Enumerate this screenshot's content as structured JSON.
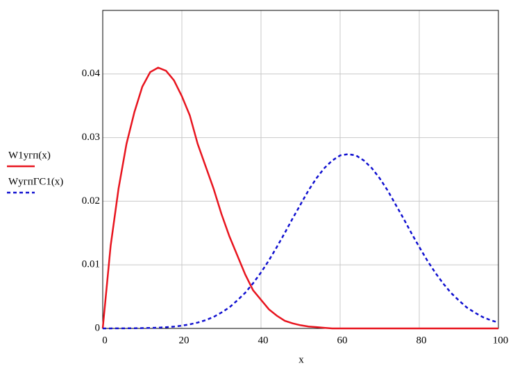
{
  "chart_data": {
    "type": "line",
    "x_label": "x",
    "x": [
      0,
      2,
      4,
      6,
      8,
      10,
      12,
      14,
      16,
      18,
      20,
      22,
      24,
      26,
      28,
      30,
      32,
      34,
      36,
      38,
      40,
      42,
      44,
      46,
      48,
      50,
      52,
      54,
      56,
      58,
      60,
      62,
      64,
      66,
      68,
      70,
      72,
      74,
      76,
      78,
      80,
      82,
      84,
      86,
      88,
      90,
      92,
      94,
      96,
      98,
      100
    ],
    "series": [
      {
        "name": "W1угп(x)",
        "color": "#e8141e",
        "dash": false,
        "values": [
          0,
          0.013,
          0.022,
          0.029,
          0.034,
          0.038,
          0.0403,
          0.041,
          0.0405,
          0.039,
          0.0365,
          0.0335,
          0.029,
          0.0255,
          0.022,
          0.018,
          0.0145,
          0.0115,
          0.0085,
          0.006,
          0.0045,
          0.003,
          0.002,
          0.0012,
          0.0008,
          0.0005,
          0.0003,
          0.0002,
          0.0001,
          0,
          0,
          0,
          0,
          0,
          0,
          0,
          0,
          0,
          0,
          0,
          0,
          0,
          0,
          0,
          0,
          0,
          0,
          0,
          0,
          0,
          0
        ]
      },
      {
        "name": "WугпГС1(x)",
        "color": "#1010d0",
        "dash": true,
        "values": [
          0,
          6e-06,
          1e-05,
          2e-05,
          3e-05,
          5e-05,
          8e-05,
          0.00012,
          0.00019,
          0.00029,
          0.00044,
          0.00064,
          0.00092,
          0.0013,
          0.0018,
          0.0025,
          0.0033,
          0.0044,
          0.0056,
          0.0071,
          0.0088,
          0.0107,
          0.0128,
          0.015,
          0.0173,
          0.0195,
          0.0217,
          0.0236,
          0.0252,
          0.0264,
          0.0272,
          0.0274,
          0.0272,
          0.0264,
          0.0252,
          0.0236,
          0.0217,
          0.0195,
          0.0173,
          0.015,
          0.0128,
          0.0107,
          0.0088,
          0.0071,
          0.0056,
          0.0044,
          0.0033,
          0.0025,
          0.0018,
          0.0013,
          0.00092
        ]
      }
    ],
    "xlim": [
      0,
      100
    ],
    "xticks": [
      0,
      20,
      40,
      60,
      80,
      100
    ],
    "ylim": [
      0,
      0.05
    ],
    "yticks": [
      0,
      0.01,
      0.02,
      0.03,
      0.04
    ],
    "grid": true
  }
}
